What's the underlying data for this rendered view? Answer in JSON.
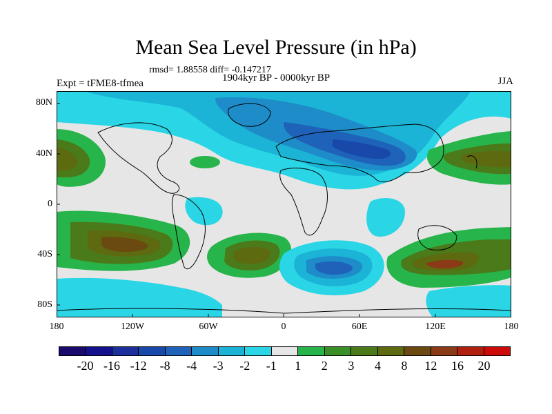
{
  "title": "Mean Sea Level Pressure (in hPa)",
  "stats": "rmsd= 1.88558 diff= -0.147217",
  "period": "1904kyr BP - 0000kyr BP",
  "experiment": "Expt = tFME8-tfmea",
  "season": "JJA",
  "axes": {
    "y_labels": [
      "80N",
      "40N",
      "0",
      "40S",
      "80S"
    ],
    "x_labels": [
      "180",
      "120W",
      "60W",
      "0",
      "60E",
      "120E",
      "180"
    ]
  },
  "colorbar": {
    "colors": [
      "#1a0a6e",
      "#13128c",
      "#1c2f9a",
      "#1848aa",
      "#1f62b9",
      "#1d8cc8",
      "#1bb3d6",
      "#2ad5e6",
      "#e6e6e6",
      "#27b44a",
      "#3b8f27",
      "#4a7a1a",
      "#5d6a10",
      "#6a4a10",
      "#8a3a16",
      "#b0200e",
      "#cc0a0a"
    ],
    "labels": [
      "-20",
      "-16",
      "-12",
      "-8",
      "-4",
      "-3",
      "-2",
      "-1",
      "1",
      "2",
      "3",
      "4",
      "8",
      "12",
      "16",
      "20"
    ]
  }
}
